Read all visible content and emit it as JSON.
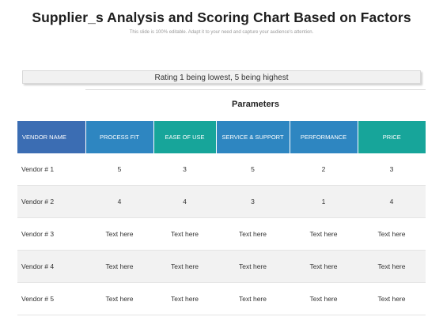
{
  "header": {
    "title": "Supplier_s Analysis and Scoring Chart Based on Factors",
    "subtitle": "This slide is 100% editable. Adapt it to your need and capture your audience's attention."
  },
  "rating_note": "Rating 1 being lowest, 5 being highest",
  "parameters_label": "Parameters",
  "table": {
    "columns": [
      "VENDOR NAME",
      "PROCESS FIT",
      "EASE OF USE",
      "SERVICE & SUPPORT",
      "PERFORMANCE",
      "PRICE"
    ],
    "rows": [
      {
        "vendor": "Vendor # 1",
        "values": [
          "5",
          "3",
          "5",
          "2",
          "3"
        ]
      },
      {
        "vendor": "Vendor # 2",
        "values": [
          "4",
          "4",
          "3",
          "1",
          "4"
        ]
      },
      {
        "vendor": "Vendor # 3",
        "values": [
          "Text here",
          "Text here",
          "Text here",
          "Text here",
          "Text here"
        ]
      },
      {
        "vendor": "Vendor # 4",
        "values": [
          "Text here",
          "Text here",
          "Text here",
          "Text here",
          "Text here"
        ]
      },
      {
        "vendor": "Vendor # 5",
        "values": [
          "Text here",
          "Text here",
          "Text here",
          "Text here",
          "Text here"
        ]
      }
    ]
  },
  "colors": {
    "vendor_header": "#3b6db3",
    "blue_header": "#2e86c1",
    "teal_header": "#17a59a",
    "alt_row": "#f2f2f2"
  }
}
